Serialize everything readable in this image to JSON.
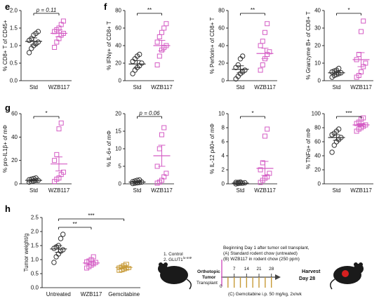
{
  "colors": {
    "std": "#333333",
    "wzb": "#d45cc4",
    "gem": "#c79a36",
    "red": "#d62020"
  },
  "panels": [
    {
      "id": "e",
      "letter": "e",
      "ylabel": "% CD8+ T of CD45+",
      "yticks": [
        "0.0",
        "0.5",
        "1.0",
        "1.5",
        "2.0"
      ],
      "ymin": 0,
      "ymax": 2,
      "categories": [
        "Std",
        "WZB117"
      ],
      "sig": "p = 0.11",
      "sig_italic": true,
      "groups": [
        {
          "mean": 1.12,
          "sem": 0.1,
          "points": [
            0.8,
            0.92,
            1.0,
            1.05,
            1.1,
            1.15,
            1.2,
            1.3,
            1.35,
            1.4
          ]
        },
        {
          "mean": 1.35,
          "sem": 0.1,
          "points": [
            0.95,
            1.1,
            1.2,
            1.3,
            1.35,
            1.4,
            1.45,
            1.5,
            1.6,
            1.7
          ]
        }
      ]
    },
    {
      "id": "f1",
      "letter": "f",
      "ylabel": "% IFNγ+ of CD8+ T",
      "yticks": [
        "0",
        "20",
        "40",
        "60",
        "80"
      ],
      "ymin": 0,
      "ymax": 80,
      "categories": [
        "Std",
        "WZB117"
      ],
      "sig": "**",
      "groups": [
        {
          "mean": 19,
          "sem": 4,
          "points": [
            8,
            12,
            15,
            17,
            20,
            22,
            25,
            28,
            30
          ]
        },
        {
          "mean": 40,
          "sem": 6,
          "points": [
            18,
            28,
            35,
            38,
            40,
            44,
            50,
            55,
            60,
            65
          ]
        }
      ]
    },
    {
      "id": "f2",
      "letter": "",
      "ylabel": "% Perforin+ of CD8+ T",
      "yticks": [
        "0",
        "20",
        "40",
        "60",
        "80"
      ],
      "ymin": 0,
      "ymax": 80,
      "categories": [
        "Std",
        "WZB117"
      ],
      "sig": "**",
      "groups": [
        {
          "mean": 13,
          "sem": 4,
          "points": [
            2,
            5,
            8,
            10,
            12,
            15,
            18,
            25,
            28
          ]
        },
        {
          "mean": 31,
          "sem": 6,
          "points": [
            12,
            18,
            25,
            30,
            33,
            40,
            45,
            55,
            65
          ]
        }
      ]
    },
    {
      "id": "f3",
      "letter": "",
      "ylabel": "% Granzyme B+ of CD8+ T",
      "yticks": [
        "0",
        "10",
        "20",
        "30",
        "40"
      ],
      "ymin": 0,
      "ymax": 40,
      "categories": [
        "Std",
        "WZB117"
      ],
      "sig": "*",
      "groups": [
        {
          "mean": 4.5,
          "sem": 1,
          "points": [
            2,
            3,
            3.5,
            4,
            4.5,
            5,
            5.5,
            6,
            7
          ]
        },
        {
          "mean": 12,
          "sem": 4,
          "points": [
            2,
            3,
            5,
            8,
            10,
            12,
            15,
            28,
            34
          ]
        }
      ]
    },
    {
      "id": "g1",
      "letter": "g",
      "ylabel": "% pro-IL1β+ of mΦ",
      "yticks": [
        "0",
        "20",
        "40",
        "60"
      ],
      "ymin": 0,
      "ymax": 60,
      "categories": [
        "Std",
        "WZB117"
      ],
      "sig": "*",
      "groups": [
        {
          "mean": 3,
          "sem": 0.5,
          "points": [
            1.5,
            2,
            2.5,
            3,
            3,
            3.5,
            4,
            4.5,
            5
          ]
        },
        {
          "mean": 17,
          "sem": 6,
          "points": [
            2,
            4,
            5,
            8,
            10,
            20,
            25,
            47,
            52
          ]
        }
      ]
    },
    {
      "id": "g2",
      "letter": "",
      "ylabel": "% IL-6+ of mΦ",
      "yticks": [
        "0",
        "5",
        "10",
        "15",
        "20"
      ],
      "ymin": 0,
      "ymax": 20,
      "categories": [
        "Std",
        "WZB117"
      ],
      "sig": "p = 0.06",
      "sig_italic": true,
      "groups": [
        {
          "mean": 0.5,
          "sem": 0.2,
          "points": [
            0.1,
            0.2,
            0.3,
            0.4,
            0.5,
            0.6,
            0.8,
            1,
            1.1
          ]
        },
        {
          "mean": 8,
          "sem": 3,
          "points": [
            0.2,
            0.5,
            1,
            2,
            3,
            5,
            10,
            14,
            16
          ]
        }
      ]
    },
    {
      "id": "g3",
      "letter": "",
      "ylabel": "% IL-12 p40+ of mΦ",
      "yticks": [
        "0",
        "2",
        "4",
        "6",
        "8",
        "10"
      ],
      "ymin": 0,
      "ymax": 10,
      "categories": [
        "Std",
        "WZB117"
      ],
      "sig": "*",
      "groups": [
        {
          "mean": 0.1,
          "sem": 0.05,
          "points": [
            0,
            0.05,
            0.1,
            0.1,
            0.15,
            0.2,
            0.2,
            0.25
          ]
        },
        {
          "mean": 2.2,
          "sem": 1,
          "points": [
            0.2,
            0.5,
            0.8,
            1,
            1.5,
            2,
            3,
            6.8,
            7.8
          ]
        }
      ]
    },
    {
      "id": "g4",
      "letter": "",
      "ylabel": "% TNFα+ of mΦ",
      "yticks": [
        "0",
        "20",
        "40",
        "60",
        "80",
        "100"
      ],
      "ymin": 0,
      "ymax": 100,
      "categories": [
        "Std",
        "WZB117"
      ],
      "sig": "***",
      "groups": [
        {
          "mean": 66,
          "sem": 4,
          "points": [
            45,
            55,
            60,
            63,
            66,
            70,
            72,
            75,
            78
          ]
        },
        {
          "mean": 84,
          "sem": 2,
          "points": [
            75,
            78,
            80,
            82,
            84,
            86,
            88,
            92,
            94
          ]
        }
      ]
    },
    {
      "id": "h",
      "letter": "h",
      "ylabel": "Tumor weight/g",
      "yticks": [
        "0.0",
        "0.5",
        "1.0",
        "1.5",
        "2.0",
        "2.5"
      ],
      "ymin": 0,
      "ymax": 2.5,
      "categories": [
        "Untreated",
        "WZB117",
        "Gemcitabine"
      ],
      "sig_pairs": [
        {
          "from": 0,
          "to": 1,
          "label": "**"
        },
        {
          "from": 0,
          "to": 2,
          "label": "***"
        }
      ],
      "groups": [
        {
          "mean": 1.38,
          "sem": 0.12,
          "points": [
            0.9,
            1.1,
            1.2,
            1.3,
            1.35,
            1.4,
            1.45,
            1.5,
            1.75,
            1.9
          ]
        },
        {
          "mean": 0.88,
          "sem": 0.07,
          "points": [
            0.7,
            0.75,
            0.8,
            0.85,
            0.9,
            0.92,
            0.95,
            1.0,
            1.1
          ]
        },
        {
          "mean": 0.72,
          "sem": 0.05,
          "points": [
            0.6,
            0.62,
            0.65,
            0.68,
            0.7,
            0.72,
            0.75,
            0.8,
            0.85
          ]
        }
      ]
    }
  ],
  "schematic": {
    "groups_line1": "1. Control",
    "groups_line2": "2. GLUT1",
    "groups_line2_sup": "lo-mΦ",
    "orthotopic": "Orthotopic",
    "tumor": "Tumor",
    "transplant": "Transplant",
    "day0": "0",
    "days": [
      "7",
      "14",
      "21",
      "28"
    ],
    "line1": "Beginning Day 1 after tumor cell transplant,",
    "line2": "(A) Standard rodent chow (untreated)",
    "line3": "(B) WZB117 in rodent chow (250 ppm)",
    "line4": "(C) Gemcitabine i.p. 50 mg/kg, 2x/wk",
    "harvest": "Harvest",
    "harvest_day": "Day 28"
  },
  "chart_data": [
    {
      "type": "scatter",
      "title": "",
      "ylabel": "% CD8+ T of CD45+",
      "categories": [
        "Std",
        "WZB117"
      ],
      "ylim": [
        0,
        2
      ],
      "annotation": "p = 0.11",
      "series": [
        {
          "name": "Std",
          "values": [
            0.8,
            0.92,
            1.0,
            1.05,
            1.1,
            1.15,
            1.2,
            1.3,
            1.35,
            1.4
          ]
        },
        {
          "name": "WZB117",
          "values": [
            0.95,
            1.1,
            1.2,
            1.3,
            1.35,
            1.4,
            1.45,
            1.5,
            1.6,
            1.7
          ]
        }
      ]
    },
    {
      "type": "scatter",
      "ylabel": "% IFNγ+ of CD8+ T",
      "categories": [
        "Std",
        "WZB117"
      ],
      "ylim": [
        0,
        80
      ],
      "annotation": "**",
      "series": [
        {
          "name": "Std",
          "values": [
            8,
            12,
            15,
            17,
            20,
            22,
            25,
            28,
            30
          ]
        },
        {
          "name": "WZB117",
          "values": [
            18,
            28,
            35,
            38,
            40,
            44,
            50,
            55,
            60,
            65
          ]
        }
      ]
    },
    {
      "type": "scatter",
      "ylabel": "% Perforin+ of CD8+ T",
      "categories": [
        "Std",
        "WZB117"
      ],
      "ylim": [
        0,
        80
      ],
      "annotation": "**",
      "series": [
        {
          "name": "Std",
          "values": [
            2,
            5,
            8,
            10,
            12,
            15,
            18,
            25,
            28
          ]
        },
        {
          "name": "WZB117",
          "values": [
            12,
            18,
            25,
            30,
            33,
            40,
            45,
            55,
            65
          ]
        }
      ]
    },
    {
      "type": "scatter",
      "ylabel": "% Granzyme B+ of CD8+ T",
      "categories": [
        "Std",
        "WZB117"
      ],
      "ylim": [
        0,
        40
      ],
      "annotation": "*",
      "series": [
        {
          "name": "Std",
          "values": [
            2,
            3,
            3.5,
            4,
            4.5,
            5,
            5.5,
            6,
            7
          ]
        },
        {
          "name": "WZB117",
          "values": [
            2,
            3,
            5,
            8,
            10,
            12,
            15,
            28,
            34
          ]
        }
      ]
    },
    {
      "type": "scatter",
      "ylabel": "% pro-IL1β+ of mΦ",
      "categories": [
        "Std",
        "WZB117"
      ],
      "ylim": [
        0,
        60
      ],
      "annotation": "*",
      "series": [
        {
          "name": "Std",
          "values": [
            1.5,
            2,
            2.5,
            3,
            3,
            3.5,
            4,
            4.5,
            5
          ]
        },
        {
          "name": "WZB117",
          "values": [
            2,
            4,
            5,
            8,
            10,
            20,
            25,
            47,
            52
          ]
        }
      ]
    },
    {
      "type": "scatter",
      "ylabel": "% IL-6+ of mΦ",
      "categories": [
        "Std",
        "WZB117"
      ],
      "ylim": [
        0,
        20
      ],
      "annotation": "p = 0.06",
      "series": [
        {
          "name": "Std",
          "values": [
            0.1,
            0.2,
            0.3,
            0.4,
            0.5,
            0.6,
            0.8,
            1,
            1.1
          ]
        },
        {
          "name": "WZB117",
          "values": [
            0.2,
            0.5,
            1,
            2,
            3,
            5,
            10,
            14,
            16
          ]
        }
      ]
    },
    {
      "type": "scatter",
      "ylabel": "% IL-12 p40+ of mΦ",
      "categories": [
        "Std",
        "WZB117"
      ],
      "ylim": [
        0,
        10
      ],
      "annotation": "*",
      "series": [
        {
          "name": "Std",
          "values": [
            0,
            0.05,
            0.1,
            0.1,
            0.15,
            0.2,
            0.2,
            0.25
          ]
        },
        {
          "name": "WZB117",
          "values": [
            0.2,
            0.5,
            0.8,
            1,
            1.5,
            2,
            3,
            6.8,
            7.8
          ]
        }
      ]
    },
    {
      "type": "scatter",
      "ylabel": "% TNFα+ of mΦ",
      "categories": [
        "Std",
        "WZB117"
      ],
      "ylim": [
        0,
        100
      ],
      "annotation": "***",
      "series": [
        {
          "name": "Std",
          "values": [
            45,
            55,
            60,
            63,
            66,
            70,
            72,
            75,
            78
          ]
        },
        {
          "name": "WZB117",
          "values": [
            75,
            78,
            80,
            82,
            84,
            86,
            88,
            92,
            94
          ]
        }
      ]
    },
    {
      "type": "scatter",
      "ylabel": "Tumor weight/g",
      "categories": [
        "Untreated",
        "WZB117",
        "Gemcitabine"
      ],
      "ylim": [
        0,
        2.5
      ],
      "annotations": [
        "**",
        "***"
      ],
      "series": [
        {
          "name": "Untreated",
          "values": [
            0.9,
            1.1,
            1.2,
            1.3,
            1.35,
            1.4,
            1.45,
            1.5,
            1.75,
            1.9
          ]
        },
        {
          "name": "WZB117",
          "values": [
            0.7,
            0.75,
            0.8,
            0.85,
            0.9,
            0.92,
            0.95,
            1.0,
            1.1
          ]
        },
        {
          "name": "Gemcitabine",
          "values": [
            0.6,
            0.62,
            0.65,
            0.68,
            0.7,
            0.72,
            0.75,
            0.8,
            0.85
          ]
        }
      ]
    }
  ]
}
